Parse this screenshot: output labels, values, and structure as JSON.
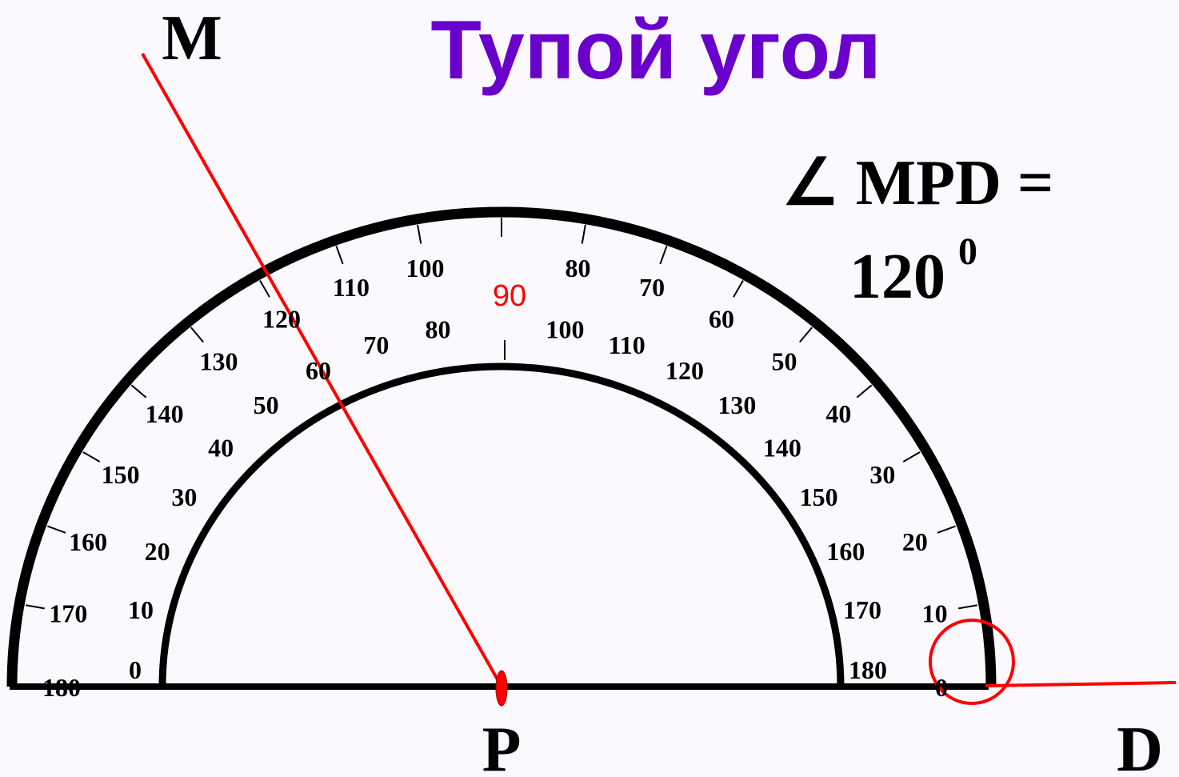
{
  "title": "Тупой угол",
  "points": {
    "m": "M",
    "p": "P",
    "d": "D"
  },
  "angle": {
    "name": "∠ MPD =",
    "value": "120",
    "unit": "0"
  },
  "protractor": {
    "middle_label": "90",
    "outer_scale": [
      "0",
      "10",
      "20",
      "30",
      "40",
      "50",
      "60",
      "70",
      "80",
      "100",
      "110",
      "120",
      "130",
      "140",
      "150",
      "160",
      "170",
      "180"
    ],
    "inner_scale": [
      "0",
      "10",
      "20",
      "30",
      "40",
      "50",
      "60",
      "70",
      "80",
      "100",
      "110",
      "120",
      "130",
      "140",
      "150",
      "160",
      "170",
      "180"
    ]
  }
}
